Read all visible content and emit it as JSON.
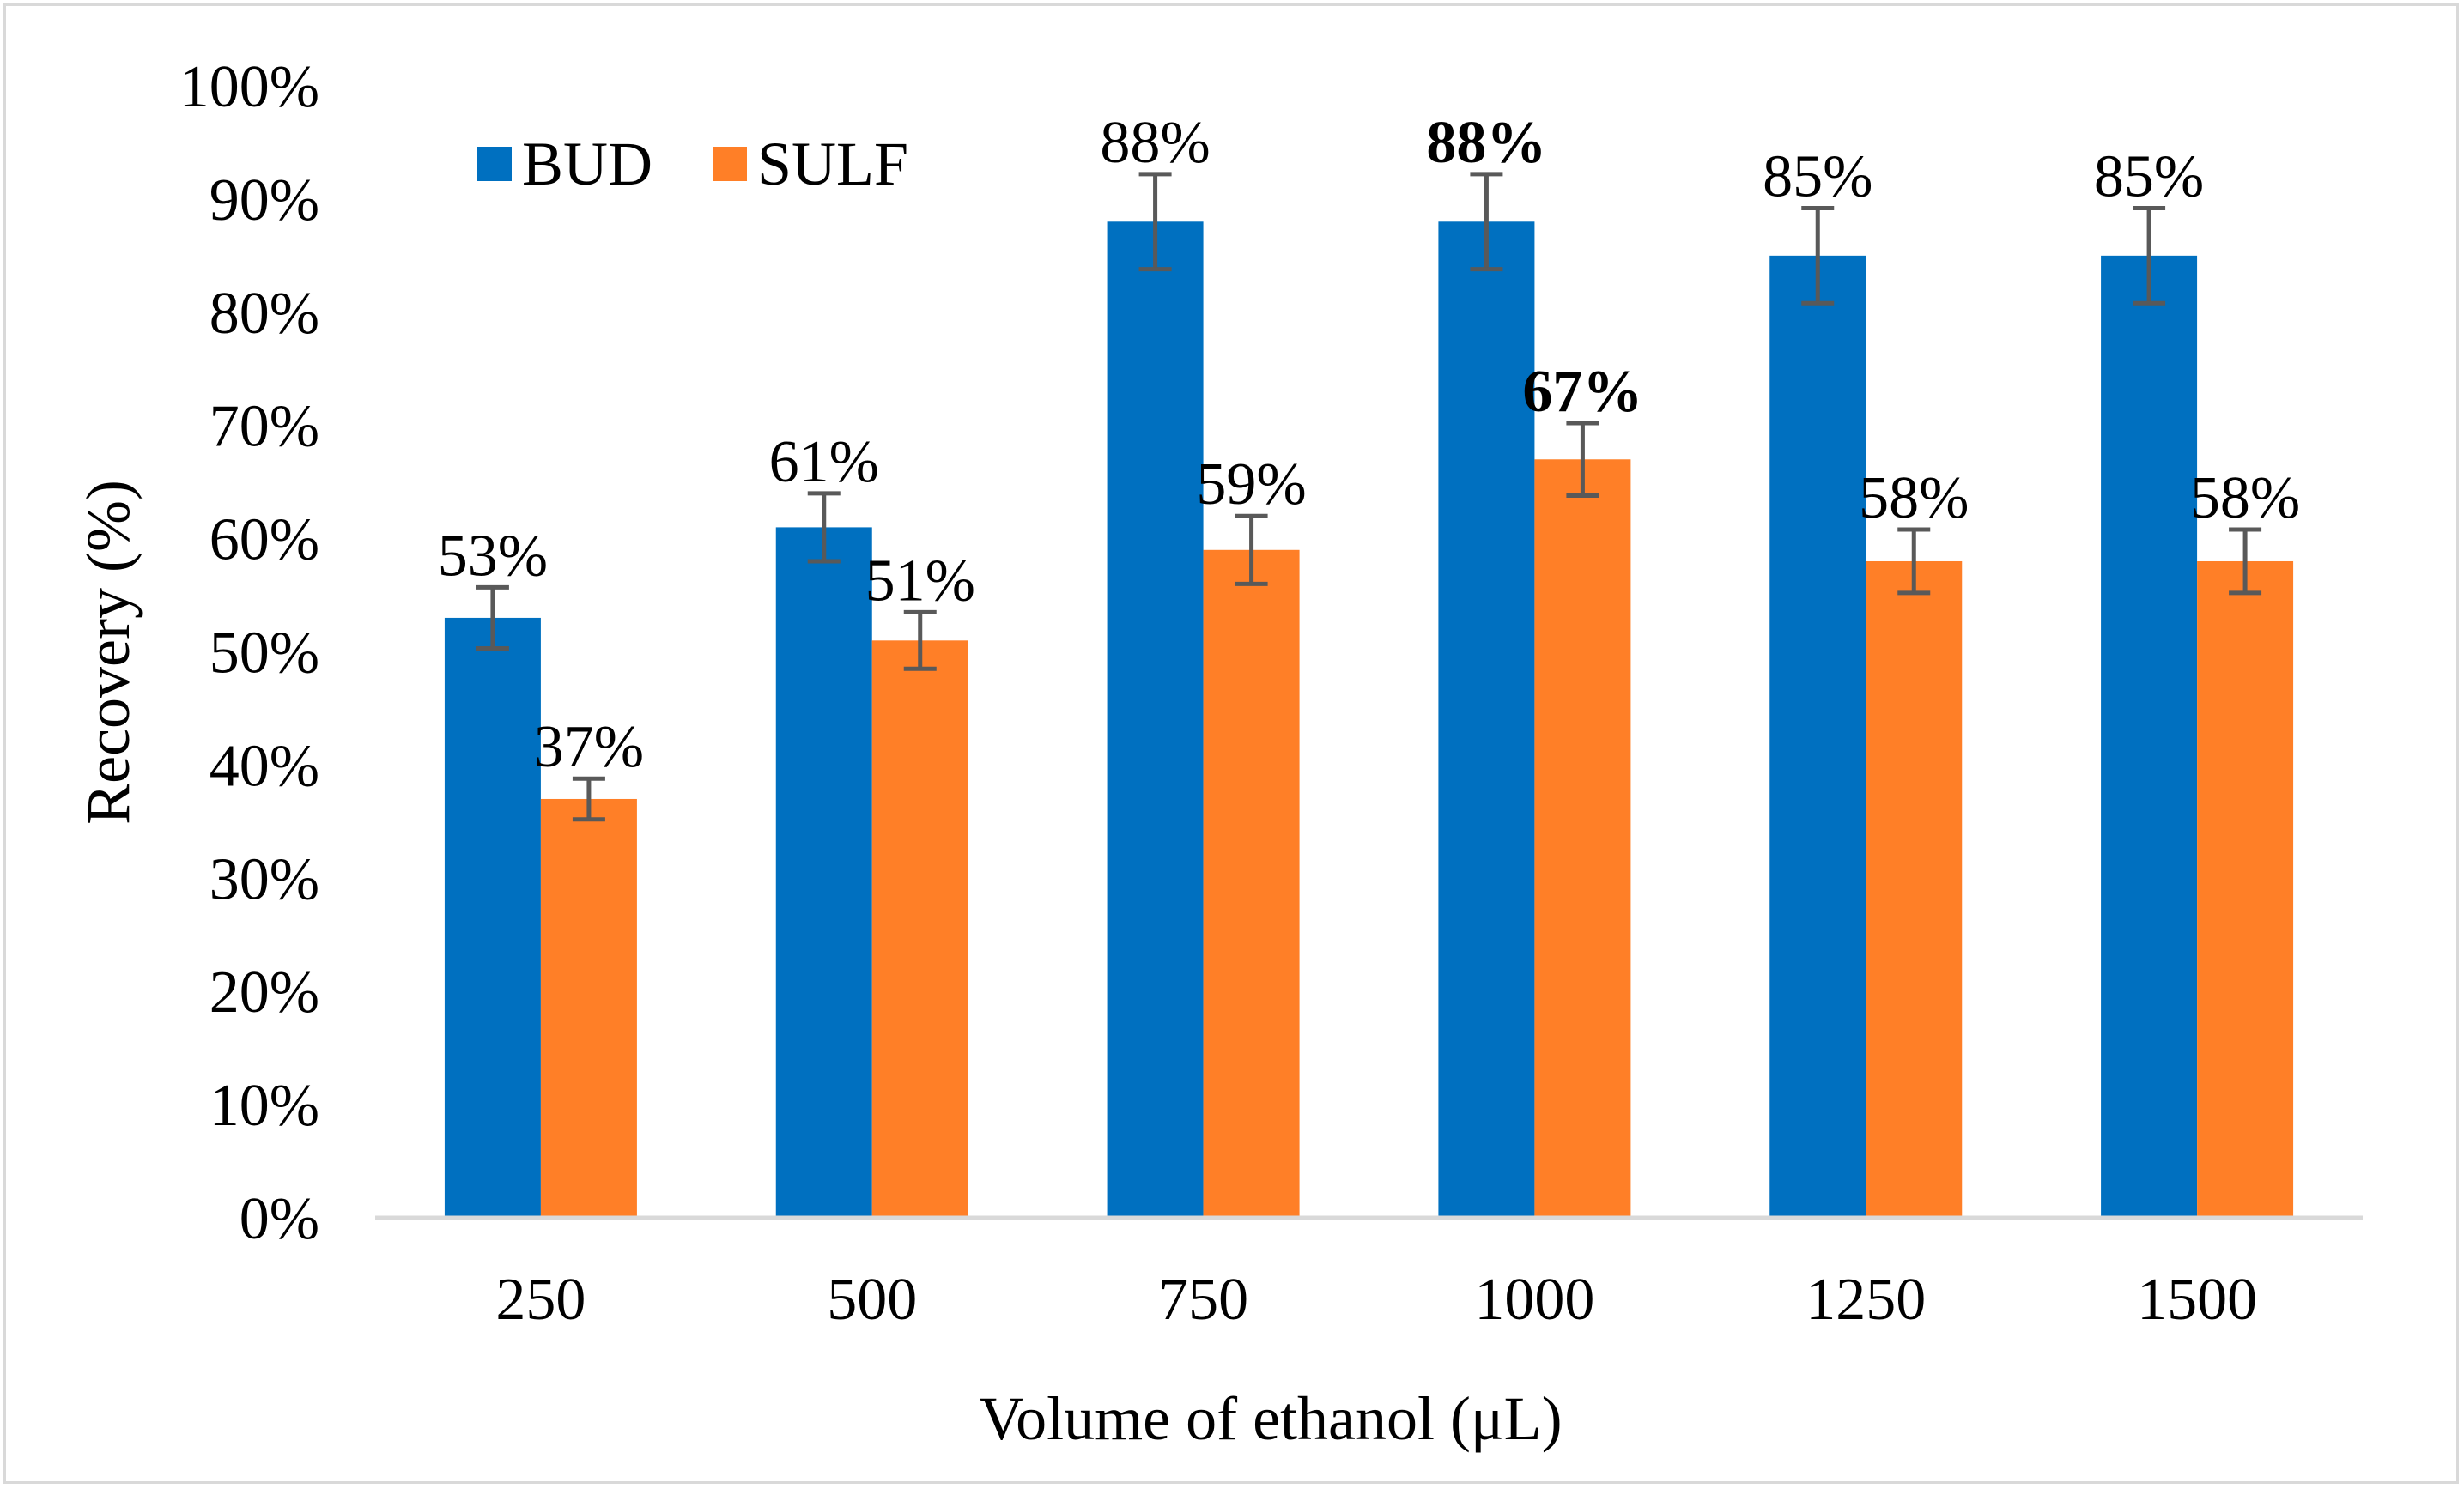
{
  "chart_data": {
    "type": "bar",
    "title": "",
    "xlabel": "Volume of ethanol (μL)",
    "ylabel": "Recovery (%)",
    "ylim": [
      0,
      100
    ],
    "ytick_step": 10,
    "ytick_labels": [
      "0%",
      "10%",
      "20%",
      "30%",
      "40%",
      "50%",
      "60%",
      "70%",
      "80%",
      "90%",
      "100%"
    ],
    "categories": [
      "250",
      "500",
      "750",
      "1000",
      "1250",
      "1500"
    ],
    "grid": false,
    "legend": {
      "position": "top-left",
      "entries": [
        "BUD",
        "SULF"
      ]
    },
    "series": [
      {
        "name": "BUD",
        "color": "#0070c0",
        "values": [
          53,
          61,
          88,
          88,
          85,
          85
        ],
        "errors": [
          2.7,
          3.0,
          4.2,
          4.2,
          4.2,
          4.2
        ],
        "labels": [
          "53%",
          "61%",
          "88%",
          "88%",
          "85%",
          "85%"
        ],
        "bold": [
          false,
          false,
          false,
          true,
          false,
          false
        ]
      },
      {
        "name": "SULF",
        "color": "#ff7f27",
        "values": [
          37,
          51,
          59,
          67,
          58,
          58
        ],
        "errors": [
          1.8,
          2.5,
          3.0,
          3.2,
          2.8,
          2.8
        ],
        "labels": [
          "37%",
          "51%",
          "59%",
          "67%",
          "58%",
          "58%"
        ],
        "bold": [
          false,
          false,
          false,
          true,
          false,
          false
        ]
      }
    ]
  }
}
